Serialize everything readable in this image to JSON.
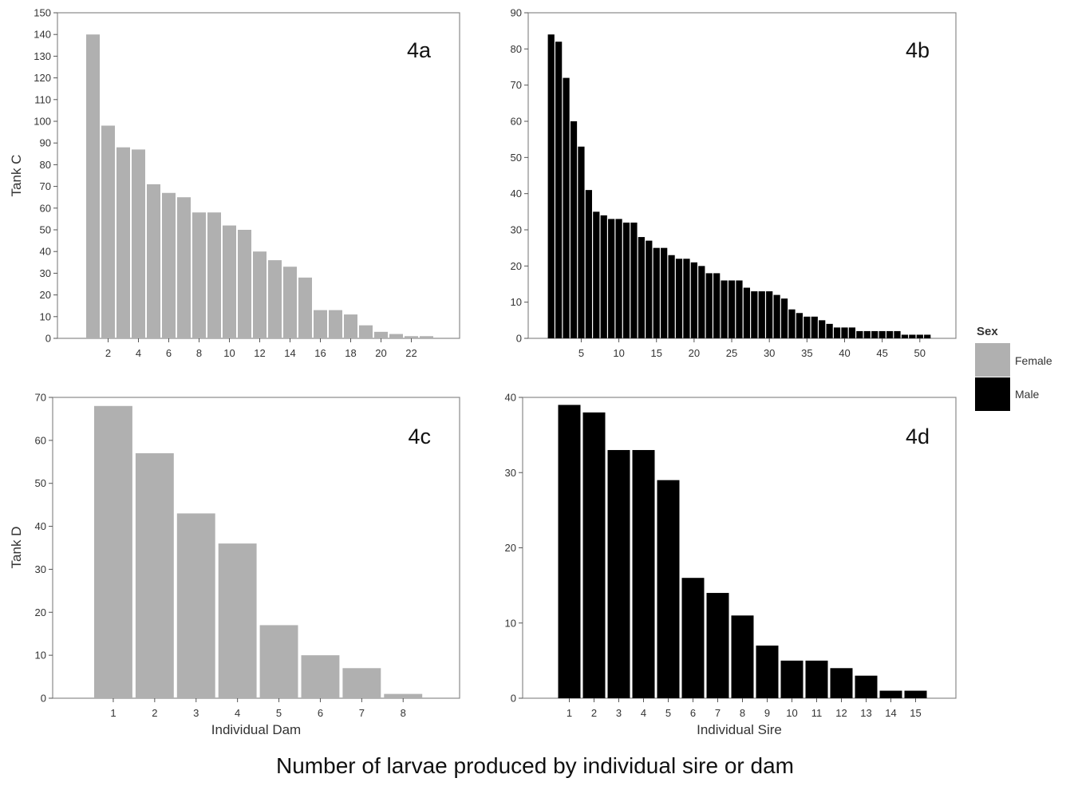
{
  "caption": "Number of larvae produced by individual sire or dam",
  "legend": {
    "title": "Sex",
    "items": [
      {
        "label": "Female",
        "color": "#b0b0b0"
      },
      {
        "label": "Male",
        "color": "#000000"
      }
    ]
  },
  "chart_data": [
    {
      "type": "bar",
      "panel": "4a",
      "ylabel": "Tank C",
      "xlabel": "",
      "series_name": "Female",
      "color": "#b0b0b0",
      "ylim": [
        0,
        150
      ],
      "yticks": [
        0,
        10,
        20,
        30,
        40,
        50,
        60,
        70,
        80,
        90,
        100,
        110,
        120,
        130,
        140,
        150
      ],
      "xticks": [
        2,
        4,
        6,
        8,
        10,
        12,
        14,
        16,
        18,
        20,
        22
      ],
      "x": [
        1,
        2,
        3,
        4,
        5,
        6,
        7,
        8,
        9,
        10,
        11,
        12,
        13,
        14,
        15,
        16,
        17,
        18,
        19,
        20,
        21,
        22,
        23
      ],
      "values": [
        140,
        98,
        88,
        87,
        71,
        67,
        65,
        58,
        58,
        52,
        50,
        40,
        36,
        33,
        28,
        13,
        13,
        11,
        6,
        3,
        2,
        1,
        1
      ]
    },
    {
      "type": "bar",
      "panel": "4b",
      "ylabel": "",
      "xlabel": "",
      "series_name": "Male",
      "color": "#000000",
      "ylim": [
        0,
        90
      ],
      "yticks": [
        0,
        10,
        20,
        30,
        40,
        50,
        60,
        70,
        80,
        90
      ],
      "xticks": [
        5,
        10,
        15,
        20,
        25,
        30,
        35,
        40,
        45,
        50
      ],
      "x": [
        1,
        2,
        3,
        4,
        5,
        6,
        7,
        8,
        9,
        10,
        11,
        12,
        13,
        14,
        15,
        16,
        17,
        18,
        19,
        20,
        21,
        22,
        23,
        24,
        25,
        26,
        27,
        28,
        29,
        30,
        31,
        32,
        33,
        34,
        35,
        36,
        37,
        38,
        39,
        40,
        41,
        42,
        43,
        44,
        45,
        46,
        47,
        48,
        49,
        50,
        51
      ],
      "values": [
        84,
        82,
        72,
        60,
        53,
        41,
        35,
        34,
        33,
        33,
        32,
        32,
        28,
        27,
        25,
        25,
        23,
        22,
        22,
        21,
        20,
        18,
        18,
        16,
        16,
        16,
        14,
        13,
        13,
        13,
        12,
        11,
        8,
        7,
        6,
        6,
        5,
        4,
        3,
        3,
        3,
        2,
        2,
        2,
        2,
        2,
        2,
        1,
        1,
        1,
        1
      ]
    },
    {
      "type": "bar",
      "panel": "4c",
      "ylabel": "Tank D",
      "xlabel": "Individual Dam",
      "series_name": "Female",
      "color": "#b0b0b0",
      "ylim": [
        0,
        70
      ],
      "yticks": [
        0,
        10,
        20,
        30,
        40,
        50,
        60,
        70
      ],
      "xticks": [
        1,
        2,
        3,
        4,
        5,
        6,
        7,
        8
      ],
      "x": [
        1,
        2,
        3,
        4,
        5,
        6,
        7,
        8
      ],
      "values": [
        68,
        57,
        43,
        36,
        17,
        10,
        7,
        1
      ]
    },
    {
      "type": "bar",
      "panel": "4d",
      "ylabel": "",
      "xlabel": "Individual Sire",
      "series_name": "Male",
      "color": "#000000",
      "ylim": [
        0,
        40
      ],
      "yticks": [
        0,
        10,
        20,
        30,
        40
      ],
      "xticks": [
        1,
        2,
        3,
        4,
        5,
        6,
        7,
        8,
        9,
        10,
        11,
        12,
        13,
        14,
        15
      ],
      "x": [
        1,
        2,
        3,
        4,
        5,
        6,
        7,
        8,
        9,
        10,
        11,
        12,
        13,
        14,
        15
      ],
      "values": [
        39,
        38,
        33,
        33,
        29,
        16,
        14,
        11,
        7,
        5,
        5,
        4,
        3,
        1,
        1
      ]
    }
  ]
}
